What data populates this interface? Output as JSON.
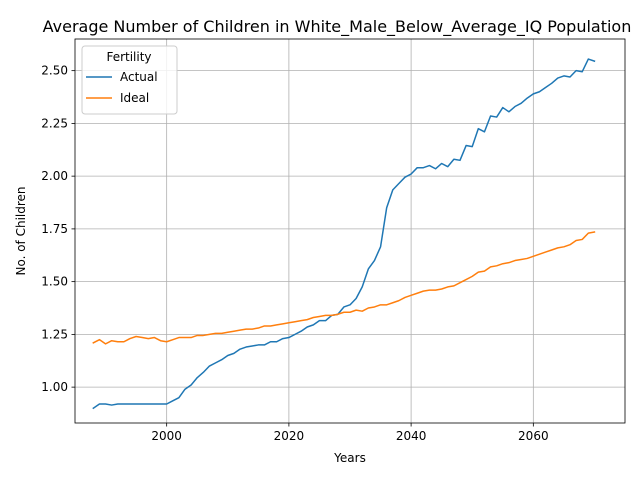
{
  "chart_data": {
    "type": "line",
    "title": "Average Number of Children in White_Male_Below_Average_IQ Population",
    "xlabel": "Years",
    "ylabel": "No. of Children",
    "xlim": [
      1985,
      2075
    ],
    "ylim": [
      0.83,
      2.65
    ],
    "xticks": [
      2000,
      2020,
      2040,
      2060
    ],
    "yticks": [
      1.0,
      1.25,
      1.5,
      1.75,
      2.0,
      2.25,
      2.5
    ],
    "ytick_labels": [
      "1.00",
      "1.25",
      "1.50",
      "1.75",
      "2.00",
      "2.25",
      "2.50"
    ],
    "grid": true,
    "legend": {
      "title": "Fertility",
      "placement": "upper-left"
    },
    "colors": {
      "Actual": "#1f77b4",
      "Ideal": "#ff7f0e"
    },
    "x": [
      1988,
      1989,
      1990,
      1991,
      1992,
      1993,
      1994,
      1995,
      1996,
      1997,
      1998,
      1999,
      2000,
      2001,
      2002,
      2003,
      2004,
      2005,
      2006,
      2007,
      2008,
      2009,
      2010,
      2011,
      2012,
      2013,
      2014,
      2015,
      2016,
      2017,
      2018,
      2019,
      2020,
      2021,
      2022,
      2023,
      2024,
      2025,
      2026,
      2027,
      2028,
      2029,
      2030,
      2031,
      2032,
      2033,
      2034,
      2035,
      2036,
      2037,
      2038,
      2039,
      2040,
      2041,
      2042,
      2043,
      2044,
      2045,
      2046,
      2047,
      2048,
      2049,
      2050,
      2051,
      2052,
      2053,
      2054,
      2055,
      2056,
      2057,
      2058,
      2059,
      2060,
      2061,
      2062,
      2063,
      2064,
      2065,
      2066,
      2067,
      2068,
      2069,
      2070
    ],
    "series": [
      {
        "name": "Actual",
        "values": [
          0.9,
          0.92,
          0.92,
          0.915,
          0.92,
          0.92,
          0.92,
          0.92,
          0.92,
          0.92,
          0.92,
          0.92,
          0.92,
          0.935,
          0.95,
          0.99,
          1.01,
          1.045,
          1.07,
          1.1,
          1.115,
          1.13,
          1.15,
          1.16,
          1.18,
          1.19,
          1.195,
          1.2,
          1.2,
          1.215,
          1.215,
          1.23,
          1.235,
          1.25,
          1.265,
          1.285,
          1.295,
          1.315,
          1.315,
          1.34,
          1.345,
          1.38,
          1.39,
          1.42,
          1.475,
          1.56,
          1.6,
          1.665,
          1.85,
          1.935,
          1.965,
          1.995,
          2.01,
          2.04,
          2.04,
          2.05,
          2.035,
          2.06,
          2.045,
          2.08,
          2.075,
          2.145,
          2.14,
          2.225,
          2.21,
          2.285,
          2.28,
          2.325,
          2.305,
          2.33,
          2.345,
          2.37,
          2.39,
          2.4,
          2.42,
          2.44,
          2.465,
          2.475,
          2.47,
          2.5,
          2.495,
          2.555,
          2.545
        ]
      },
      {
        "name": "Ideal",
        "values": [
          1.21,
          1.225,
          1.205,
          1.22,
          1.215,
          1.215,
          1.23,
          1.24,
          1.235,
          1.23,
          1.235,
          1.22,
          1.215,
          1.225,
          1.235,
          1.235,
          1.235,
          1.245,
          1.245,
          1.25,
          1.255,
          1.255,
          1.26,
          1.265,
          1.27,
          1.275,
          1.275,
          1.28,
          1.29,
          1.29,
          1.295,
          1.3,
          1.305,
          1.31,
          1.315,
          1.32,
          1.33,
          1.335,
          1.34,
          1.34,
          1.345,
          1.355,
          1.355,
          1.365,
          1.36,
          1.375,
          1.38,
          1.39,
          1.39,
          1.4,
          1.41,
          1.425,
          1.435,
          1.445,
          1.455,
          1.46,
          1.46,
          1.465,
          1.475,
          1.48,
          1.495,
          1.51,
          1.525,
          1.545,
          1.55,
          1.57,
          1.575,
          1.585,
          1.59,
          1.6,
          1.605,
          1.61,
          1.62,
          1.63,
          1.64,
          1.65,
          1.66,
          1.665,
          1.675,
          1.695,
          1.7,
          1.73,
          1.735
        ]
      }
    ]
  }
}
